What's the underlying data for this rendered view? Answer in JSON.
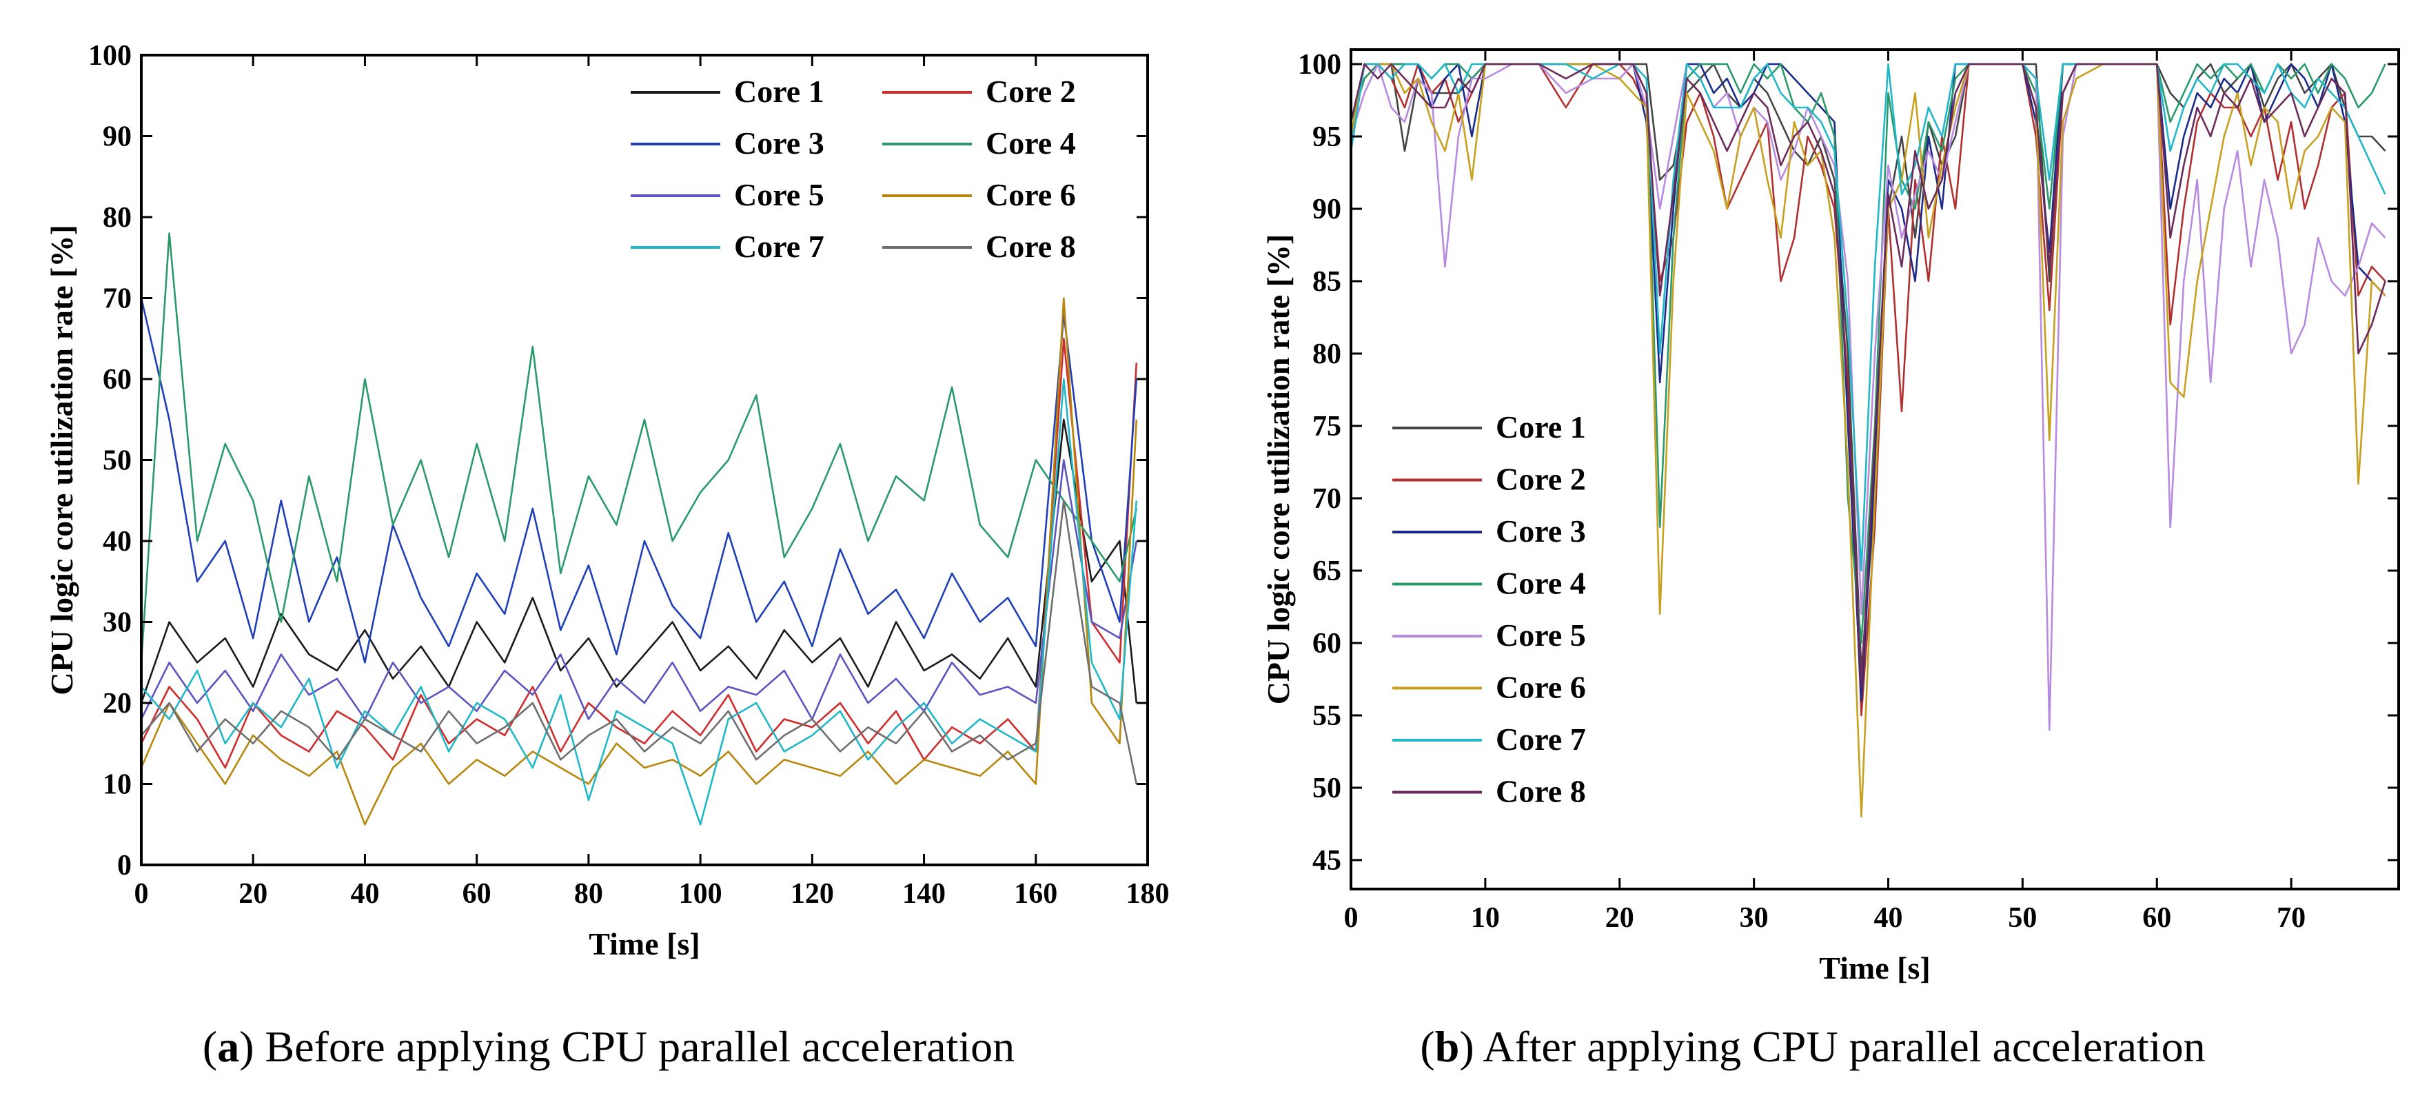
{
  "colors": {
    "Core 1": "#1a1a1a",
    "Core 2": "#d02b2b",
    "Core 3": "#1f3fb8",
    "Core 4": "#2a9a6a",
    "Core 5": "#5a55c0",
    "Core 6": "#b8860b",
    "Core 7": "#20b8c8",
    "Core 8": "#6e6e6e"
  },
  "colors_b": {
    "Core 1": "#444444",
    "Core 2": "#b03030",
    "Core 3": "#1a2a8a",
    "Core 4": "#2a9a6a",
    "Core 5": "#b88ae0",
    "Core 6": "#c8a020",
    "Core 7": "#20b8c8",
    "Core 8": "#6a2a5a"
  },
  "chart_data": [
    {
      "type": "line",
      "title": "",
      "xlabel": "Time  [s]",
      "ylabel": "CPU logic core utilization rate [%]",
      "xlim": [
        0,
        180
      ],
      "ylim": [
        0,
        100
      ],
      "xticks": [
        0,
        20,
        40,
        60,
        80,
        100,
        120,
        140,
        160,
        180
      ],
      "yticks": [
        0,
        10,
        20,
        30,
        40,
        50,
        60,
        70,
        80,
        90,
        100
      ],
      "legend": [
        "Core 1",
        "Core 2",
        "Core 3",
        "Core 4",
        "Core 5",
        "Core 6",
        "Core 7",
        "Core 8"
      ],
      "legend_position": "top-right",
      "caption_label": "a",
      "caption_text": "Before applying CPU parallel acceleration",
      "x": [
        0,
        5,
        10,
        15,
        20,
        25,
        30,
        35,
        40,
        45,
        50,
        55,
        60,
        65,
        70,
        75,
        80,
        85,
        90,
        95,
        100,
        105,
        110,
        115,
        120,
        125,
        130,
        135,
        140,
        145,
        150,
        155,
        160,
        165,
        170,
        175,
        178
      ],
      "series": [
        {
          "name": "Core 1",
          "values": [
            20,
            30,
            25,
            28,
            22,
            31,
            26,
            24,
            29,
            23,
            27,
            22,
            30,
            25,
            33,
            24,
            28,
            22,
            26,
            30,
            24,
            27,
            23,
            29,
            25,
            28,
            22,
            30,
            24,
            26,
            23,
            28,
            22,
            55,
            35,
            40,
            20
          ]
        },
        {
          "name": "Core 2",
          "values": [
            15,
            22,
            18,
            12,
            20,
            16,
            14,
            19,
            17,
            13,
            21,
            15,
            18,
            16,
            22,
            14,
            20,
            17,
            15,
            19,
            16,
            21,
            14,
            18,
            17,
            20,
            15,
            19,
            13,
            17,
            15,
            18,
            14,
            65,
            30,
            25,
            62
          ]
        },
        {
          "name": "Core 3",
          "values": [
            70,
            55,
            35,
            40,
            28,
            45,
            30,
            38,
            25,
            42,
            33,
            27,
            36,
            31,
            44,
            29,
            37,
            26,
            40,
            32,
            28,
            41,
            30,
            35,
            27,
            39,
            31,
            34,
            28,
            36,
            30,
            33,
            27,
            68,
            40,
            30,
            60
          ]
        },
        {
          "name": "Core 4",
          "values": [
            25,
            78,
            40,
            52,
            45,
            30,
            48,
            35,
            60,
            42,
            50,
            38,
            52,
            40,
            64,
            36,
            48,
            42,
            55,
            40,
            46,
            50,
            58,
            38,
            44,
            52,
            40,
            48,
            45,
            59,
            42,
            38,
            50,
            45,
            40,
            35,
            44
          ]
        },
        {
          "name": "Core 5",
          "values": [
            18,
            25,
            20,
            24,
            19,
            26,
            21,
            23,
            18,
            25,
            20,
            22,
            19,
            24,
            21,
            26,
            18,
            23,
            20,
            25,
            19,
            22,
            21,
            24,
            18,
            26,
            20,
            23,
            19,
            25,
            21,
            22,
            20,
            50,
            30,
            28,
            40
          ]
        },
        {
          "name": "Core 6",
          "values": [
            12,
            20,
            15,
            10,
            16,
            13,
            11,
            14,
            5,
            12,
            15,
            10,
            13,
            11,
            14,
            12,
            10,
            15,
            12,
            13,
            11,
            14,
            10,
            13,
            12,
            11,
            14,
            10,
            13,
            12,
            11,
            14,
            10,
            70,
            20,
            15,
            55
          ]
        },
        {
          "name": "Core 7",
          "values": [
            22,
            18,
            24,
            15,
            20,
            17,
            23,
            12,
            19,
            16,
            22,
            14,
            20,
            18,
            12,
            21,
            8,
            19,
            17,
            15,
            5,
            18,
            20,
            14,
            16,
            19,
            13,
            17,
            20,
            15,
            18,
            16,
            14,
            60,
            25,
            18,
            45
          ]
        },
        {
          "name": "Core 8",
          "values": [
            16,
            20,
            14,
            18,
            15,
            19,
            17,
            13,
            18,
            16,
            14,
            19,
            15,
            17,
            20,
            13,
            16,
            18,
            14,
            17,
            15,
            19,
            13,
            16,
            18,
            14,
            17,
            15,
            19,
            14,
            16,
            13,
            15,
            45,
            22,
            20,
            10
          ]
        }
      ]
    },
    {
      "type": "line",
      "title": "",
      "xlabel": "Time  [s]",
      "ylabel": "CPU logic core utilization rate [%]",
      "xlim": [
        0,
        78
      ],
      "ylim": [
        43,
        101
      ],
      "xticks": [
        0,
        10,
        20,
        30,
        40,
        50,
        60,
        70
      ],
      "yticks": [
        45,
        50,
        55,
        60,
        65,
        70,
        75,
        80,
        85,
        90,
        95,
        100
      ],
      "legend": [
        "Core 1",
        "Core 2",
        "Core 3",
        "Core 4",
        "Core 5",
        "Core 6",
        "Core 7",
        "Core 8"
      ],
      "legend_position": "bottom-left",
      "caption_label": "b",
      "caption_text": "After applying CPU parallel acceleration",
      "x": [
        0,
        1,
        2,
        3,
        4,
        5,
        6,
        7,
        8,
        9,
        10,
        12,
        14,
        16,
        18,
        20,
        21,
        22,
        23,
        24,
        25,
        26,
        27,
        28,
        29,
        30,
        31,
        32,
        33,
        34,
        35,
        36,
        37,
        38,
        39,
        40,
        41,
        42,
        43,
        44,
        45,
        46,
        48,
        50,
        51,
        52,
        53,
        54,
        56,
        58,
        60,
        61,
        62,
        63,
        64,
        65,
        66,
        67,
        68,
        69,
        70,
        71,
        72,
        73,
        74,
        75,
        76,
        77
      ],
      "series": [
        {
          "name": "Core 1",
          "values": [
            95,
            100,
            100,
            100,
            94,
            99,
            98,
            98,
            98,
            99,
            100,
            100,
            100,
            100,
            100,
            100,
            100,
            100,
            92,
            93,
            98,
            99,
            100,
            98,
            97,
            99,
            98,
            96,
            94,
            93,
            95,
            92,
            80,
            58,
            70,
            90,
            95,
            88,
            96,
            93,
            95,
            100,
            100,
            100,
            100,
            85,
            100,
            100,
            100,
            100,
            100,
            98,
            97,
            99,
            100,
            98,
            99,
            100,
            97,
            99,
            100,
            98,
            99,
            100,
            97,
            95,
            95,
            94
          ]
        },
        {
          "name": "Core 2",
          "values": [
            96,
            99,
            100,
            99,
            97,
            100,
            98,
            99,
            96,
            98,
            100,
            100,
            100,
            97,
            100,
            100,
            99,
            97,
            85,
            88,
            96,
            98,
            95,
            90,
            92,
            94,
            96,
            85,
            88,
            95,
            93,
            90,
            78,
            55,
            68,
            90,
            76,
            92,
            85,
            95,
            90,
            100,
            100,
            100,
            95,
            83,
            98,
            100,
            100,
            100,
            100,
            82,
            90,
            96,
            98,
            97,
            97,
            95,
            97,
            92,
            96,
            90,
            93,
            97,
            98,
            84,
            86,
            85
          ]
        },
        {
          "name": "Core 3",
          "values": [
            94,
            100,
            100,
            100,
            100,
            100,
            97,
            99,
            100,
            95,
            100,
            100,
            100,
            100,
            100,
            100,
            100,
            96,
            78,
            90,
            100,
            100,
            98,
            99,
            97,
            98,
            100,
            100,
            99,
            98,
            97,
            96,
            75,
            56,
            72,
            92,
            90,
            85,
            95,
            90,
            100,
            100,
            100,
            100,
            96,
            87,
            100,
            100,
            100,
            100,
            100,
            90,
            95,
            98,
            97,
            99,
            98,
            100,
            96,
            98,
            100,
            99,
            97,
            100,
            96,
            86,
            85,
            84
          ]
        },
        {
          "name": "Core 4",
          "values": [
            96,
            99,
            100,
            100,
            100,
            100,
            99,
            100,
            100,
            99,
            100,
            100,
            100,
            100,
            100,
            100,
            100,
            98,
            68,
            88,
            99,
            100,
            100,
            100,
            98,
            100,
            99,
            100,
            97,
            96,
            98,
            95,
            70,
            60,
            75,
            98,
            92,
            90,
            96,
            94,
            99,
            100,
            100,
            100,
            98,
            90,
            100,
            100,
            100,
            100,
            100,
            96,
            98,
            100,
            99,
            100,
            99,
            100,
            98,
            100,
            99,
            100,
            98,
            100,
            99,
            97,
            98,
            100
          ]
        },
        {
          "name": "Core 5",
          "values": [
            95,
            98,
            100,
            97,
            96,
            99,
            98,
            86,
            95,
            99,
            99,
            100,
            100,
            98,
            99,
            99,
            100,
            97,
            90,
            95,
            100,
            99,
            97,
            98,
            95,
            97,
            96,
            92,
            94,
            97,
            95,
            93,
            85,
            62,
            80,
            93,
            88,
            91,
            94,
            92,
            96,
            100,
            100,
            100,
            99,
            54,
            95,
            100,
            100,
            100,
            100,
            68,
            85,
            92,
            78,
            90,
            94,
            86,
            92,
            88,
            80,
            82,
            88,
            85,
            84,
            86,
            89,
            88
          ]
        },
        {
          "name": "Core 6",
          "values": [
            95,
            100,
            100,
            100,
            98,
            99,
            96,
            94,
            98,
            92,
            100,
            100,
            100,
            100,
            100,
            99,
            98,
            97,
            62,
            85,
            98,
            96,
            94,
            90,
            95,
            97,
            92,
            88,
            96,
            93,
            94,
            88,
            72,
            48,
            70,
            90,
            92,
            98,
            88,
            93,
            97,
            100,
            100,
            100,
            97,
            74,
            96,
            99,
            100,
            100,
            100,
            78,
            77,
            85,
            90,
            95,
            98,
            93,
            97,
            96,
            90,
            94,
            95,
            97,
            96,
            71,
            85,
            84
          ]
        },
        {
          "name": "Core 7",
          "values": [
            94,
            100,
            100,
            99,
            100,
            100,
            99,
            100,
            98,
            100,
            100,
            100,
            100,
            100,
            99,
            100,
            100,
            99,
            80,
            92,
            100,
            99,
            97,
            97,
            97,
            99,
            100,
            98,
            97,
            97,
            96,
            94,
            82,
            65,
            86,
            100,
            91,
            93,
            97,
            95,
            100,
            100,
            100,
            100,
            99,
            92,
            100,
            100,
            100,
            100,
            100,
            94,
            97,
            99,
            98,
            100,
            100,
            99,
            98,
            100,
            98,
            97,
            99,
            98,
            97,
            95,
            93,
            91
          ]
        },
        {
          "name": "Core 8",
          "values": [
            96,
            100,
            99,
            100,
            99,
            98,
            97,
            97,
            99,
            98,
            100,
            100,
            100,
            99,
            100,
            100,
            100,
            98,
            84,
            91,
            99,
            98,
            96,
            94,
            96,
            98,
            97,
            93,
            95,
            96,
            94,
            91,
            77,
            57,
            74,
            91,
            86,
            94,
            90,
            92,
            98,
            100,
            100,
            100,
            97,
            86,
            98,
            100,
            100,
            100,
            100,
            88,
            93,
            97,
            95,
            98,
            97,
            99,
            96,
            97,
            98,
            95,
            97,
            99,
            98,
            80,
            82,
            85
          ]
        }
      ]
    }
  ]
}
